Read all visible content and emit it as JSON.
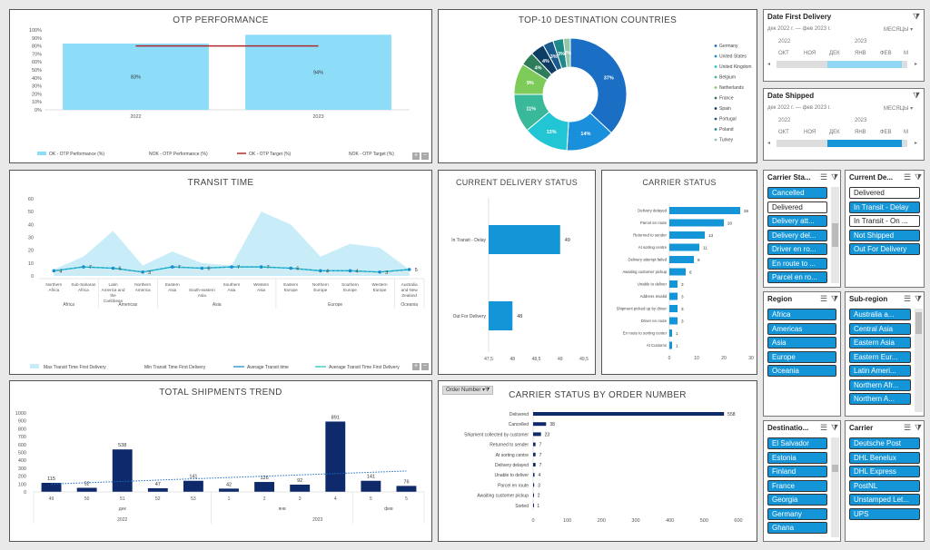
{
  "otp": {
    "title": "OTP PERFORMANCE",
    "yticks": [
      "0%",
      "10%",
      "20%",
      "30%",
      "40%",
      "50%",
      "60%",
      "70%",
      "80%",
      "90%",
      "100%"
    ],
    "categories": [
      "2022",
      "2023"
    ],
    "ok_values": [
      83,
      94
    ],
    "target_value": 80,
    "bar_labels": [
      "83%",
      "94%"
    ],
    "legend": [
      "OK - OTP Performance (%)",
      "NOK - OTP Performance (%)",
      "OK - OTP Target (%)",
      "NOK - OTP Target (%)"
    ]
  },
  "top10": {
    "title": "TOP-10 DESTINATION COUNTRIES",
    "countries": [
      "Germany",
      "United States",
      "United Kingdom",
      "Belgium",
      "Netherlands",
      "France",
      "Spain",
      "Portugal",
      "Poland",
      "Turkey"
    ],
    "values": [
      37,
      14,
      13,
      11,
      9,
      4,
      4,
      3,
      3,
      2
    ],
    "labels": [
      "37%",
      "14%",
      "13%",
      "11%",
      "9%",
      "4%",
      "4%",
      "3%",
      "3%",
      "2%"
    ],
    "colors": [
      "#1a6fc4",
      "#1a8fdc",
      "#22c5d4",
      "#3ab89a",
      "#7ecb5a",
      "#2e7d5a",
      "#0e3d63",
      "#1b5a8c",
      "#1f8a8a",
      "#94c7a8"
    ]
  },
  "transit": {
    "title": "TRANSIT TIME",
    "yticks": [
      "0",
      "10",
      "20",
      "30",
      "40",
      "50",
      "60"
    ],
    "subregions": [
      "Northern Africa",
      "Sub-Saharan Africa",
      "Latin America and the Caribbean",
      "Northern America",
      "Eastern Asia",
      "South-eastern Asia",
      "Southern Asia",
      "Western Asia",
      "Eastern Europe",
      "Northern Europe",
      "Southern Europe",
      "Western Europe",
      "Australia and New Zealand"
    ],
    "regions": [
      "Africa",
      "Americas",
      "Asia",
      "Europe",
      "Oceania"
    ],
    "max_values": [
      5,
      15,
      35,
      8,
      19,
      10,
      8,
      50,
      40,
      15,
      25,
      22,
      5
    ],
    "min_values": [
      3,
      3,
      3,
      2,
      3,
      3,
      3,
      3,
      3,
      2,
      2,
      2,
      3
    ],
    "avg_values": [
      4,
      7,
      6,
      3,
      7,
      6,
      7,
      7,
      6,
      4,
      4,
      3,
      5
    ],
    "avg_first_values": [
      4,
      7,
      6,
      3,
      7,
      6,
      7,
      7,
      6,
      4,
      4,
      3,
      5
    ],
    "avg_labels": [
      "4",
      "7",
      "6",
      "3",
      "7",
      "6",
      "7",
      "7",
      "6",
      "4",
      "4",
      "3",
      "5"
    ],
    "legend": [
      "Max Transit Time First Delivery",
      "Min Transit Time First Delivery",
      "Average Transit time",
      "Average Transit Time First Delivery"
    ]
  },
  "current_status": {
    "title": "CURRENT DELIVERY STATUS",
    "categories": [
      "In Transit - Delay",
      "Out For Delivery"
    ],
    "values": [
      49,
      48
    ],
    "xticks": [
      "47,5",
      "48",
      "48,5",
      "49",
      "49,5"
    ],
    "xmin": 47.5,
    "xmax": 49.5
  },
  "carrier_status": {
    "title": "CARRIER STATUS",
    "categories": [
      "Delivery delayed",
      "Parcel en route",
      "Returned to sender",
      "At sorting centre",
      "Delivery attempt failed",
      "Awaiting customer pickup",
      "Unable to deliver",
      "Address Invalid",
      "Shipment picked up by driver",
      "Driver en route",
      "En route to sorting center",
      "At Customs"
    ],
    "values": [
      26,
      20,
      13,
      11,
      9,
      6,
      3,
      3,
      3,
      3,
      1,
      1
    ],
    "xticks": [
      "0",
      "10",
      "20",
      "30"
    ],
    "xmax": 30
  },
  "trend": {
    "title": "TOTAL SHIPMENTS TREND",
    "yticks": [
      "0",
      "100",
      "200",
      "300",
      "400",
      "500",
      "600",
      "700",
      "800",
      "900",
      "1000"
    ],
    "weeks": [
      "49",
      "50",
      "51",
      "52",
      "53",
      "1",
      "2",
      "3",
      "4",
      "5",
      "5"
    ],
    "months": [
      "дек",
      "янв",
      "фев"
    ],
    "years": [
      "2022",
      "2023"
    ],
    "values": [
      115,
      52,
      538,
      47,
      141,
      42,
      126,
      92,
      891,
      141,
      76
    ],
    "labels": [
      "115",
      "52",
      "538",
      "47",
      "141",
      "42",
      "126",
      "92",
      "891",
      "141",
      "76"
    ]
  },
  "carrier_order": {
    "title": "CARRIER STATUS BY ORDER NUMBER",
    "filter_label": "Order Number",
    "categories": [
      "Delivered",
      "Cancelled",
      "Shipment collected by customer",
      "Returned to sender",
      "At sorting centre",
      "Delivery delayed",
      "Unable to deliver",
      "Parcel en route",
      "Awaiting customer pickup",
      "Sorted"
    ],
    "values": [
      558,
      38,
      23,
      7,
      7,
      7,
      4,
      3,
      2,
      1
    ],
    "xticks": [
      "0",
      "100",
      "200",
      "300",
      "400",
      "500",
      "600"
    ],
    "xmax": 600
  },
  "date_first": {
    "title": "Date First Delivery",
    "range": "дек 2022 г. — фев 2023 г.",
    "unit": "МЕСЯЦЫ",
    "years": [
      "2022",
      "2023"
    ],
    "months": [
      "ОКТ",
      "НОЯ",
      "ДЕК",
      "ЯНВ",
      "ФЕВ",
      "М"
    ]
  },
  "date_shipped": {
    "title": "Date Shipped",
    "range": "дек 2022 г. — фев 2023 г.",
    "unit": "МЕСЯЦЫ",
    "years": [
      "2022",
      "2023"
    ],
    "months": [
      "ОКТ",
      "НОЯ",
      "ДЕК",
      "ЯНВ",
      "ФЕВ",
      "М"
    ]
  },
  "slicers": {
    "carrier_status": {
      "title": "Carrier Sta...",
      "items": [
        {
          "label": "Cancelled",
          "on": true
        },
        {
          "label": "Delivered",
          "on": false
        },
        {
          "label": "Delivery att...",
          "on": true
        },
        {
          "label": "Delivery del...",
          "on": true
        },
        {
          "label": "Driver en ro...",
          "on": true
        },
        {
          "label": "En route to ...",
          "on": true
        },
        {
          "label": "Parcel en ro...",
          "on": true
        }
      ]
    },
    "current_delivery": {
      "title": "Current De...",
      "items": [
        {
          "label": "Delivered",
          "on": false
        },
        {
          "label": "In Transit - Delay",
          "on": true
        },
        {
          "label": "In Transit - On ...",
          "on": false
        },
        {
          "label": "Not Shipped",
          "on": true
        },
        {
          "label": "Out For Delivery",
          "on": true
        }
      ]
    },
    "region": {
      "title": "Region",
      "items": [
        {
          "label": "Africa",
          "on": true
        },
        {
          "label": "Americas",
          "on": true
        },
        {
          "label": "Asia",
          "on": true
        },
        {
          "label": "Europe",
          "on": true
        },
        {
          "label": "Oceania",
          "on": true
        }
      ]
    },
    "subregion": {
      "title": "Sub-region",
      "items": [
        {
          "label": "Australia a...",
          "on": true
        },
        {
          "label": "Central Asia",
          "on": true
        },
        {
          "label": "Eastern Asia",
          "on": true
        },
        {
          "label": "Eastern Eur...",
          "on": true
        },
        {
          "label": "Latin Ameri...",
          "on": true
        },
        {
          "label": "Northern Afr...",
          "on": true
        },
        {
          "label": "Northern A...",
          "on": true
        }
      ]
    },
    "destination": {
      "title": "Destinatio...",
      "items": [
        {
          "label": "El Salvador",
          "on": true
        },
        {
          "label": "Estonia",
          "on": true
        },
        {
          "label": "Finland",
          "on": true
        },
        {
          "label": "France",
          "on": true
        },
        {
          "label": "Georgia",
          "on": true
        },
        {
          "label": "Germany",
          "on": true
        },
        {
          "label": "Ghana",
          "on": true
        }
      ]
    },
    "carrier": {
      "title": "Carrier",
      "items": [
        {
          "label": "Deutsche Post",
          "on": true
        },
        {
          "label": "DHL Benelux",
          "on": true
        },
        {
          "label": "DHL Express",
          "on": true
        },
        {
          "label": "PostNL",
          "on": true
        },
        {
          "label": "Unstamped Let...",
          "on": true
        },
        {
          "label": "UPS",
          "on": true
        }
      ]
    }
  },
  "chart_data": [
    {
      "type": "bar",
      "title": "OTP PERFORMANCE",
      "categories": [
        "2022",
        "2023"
      ],
      "series": [
        {
          "name": "OK - OTP Performance (%)",
          "values": [
            83,
            94
          ]
        },
        {
          "name": "OK - OTP Target (%)",
          "values": [
            80,
            80
          ]
        }
      ],
      "ylim": [
        0,
        100
      ]
    },
    {
      "type": "pie",
      "title": "TOP-10 DESTINATION COUNTRIES",
      "categories": [
        "Germany",
        "United States",
        "United Kingdom",
        "Belgium",
        "Netherlands",
        "France",
        "Spain",
        "Portugal",
        "Poland",
        "Turkey"
      ],
      "values": [
        37,
        14,
        13,
        11,
        9,
        4,
        4,
        3,
        3,
        2
      ]
    },
    {
      "type": "area",
      "title": "TRANSIT TIME",
      "categories": [
        "Northern Africa",
        "Sub-Saharan Africa",
        "Latin America and the Caribbean",
        "Northern America",
        "Eastern Asia",
        "South-eastern Asia",
        "Southern Asia",
        "Western Asia",
        "Eastern Europe",
        "Northern Europe",
        "Southern Europe",
        "Western Europe",
        "Australia and New Zealand"
      ],
      "series": [
        {
          "name": "Max Transit Time First Delivery",
          "values": [
            5,
            15,
            35,
            8,
            19,
            10,
            8,
            50,
            40,
            15,
            25,
            22,
            5
          ]
        },
        {
          "name": "Average Transit time",
          "values": [
            4,
            7,
            6,
            3,
            7,
            6,
            7,
            7,
            6,
            4,
            4,
            3,
            5
          ]
        }
      ],
      "ylim": [
        0,
        60
      ]
    },
    {
      "type": "bar",
      "title": "CURRENT DELIVERY STATUS",
      "categories": [
        "In Transit - Delay",
        "Out For Delivery"
      ],
      "values": [
        49,
        48
      ],
      "xlim": [
        47.5,
        49.5
      ]
    },
    {
      "type": "bar",
      "title": "CARRIER STATUS",
      "categories": [
        "Delivery delayed",
        "Parcel en route",
        "Returned to sender",
        "At sorting centre",
        "Delivery attempt failed",
        "Awaiting customer pickup",
        "Unable to deliver",
        "Address Invalid",
        "Shipment picked up by driver",
        "Driver en route",
        "En route to sorting center",
        "At Customs"
      ],
      "values": [
        26,
        20,
        13,
        11,
        9,
        6,
        3,
        3,
        3,
        3,
        1,
        1
      ]
    },
    {
      "type": "bar",
      "title": "TOTAL SHIPMENTS TREND",
      "categories": [
        "49",
        "50",
        "51",
        "52",
        "53",
        "1",
        "2",
        "3",
        "4",
        "5",
        "5"
      ],
      "values": [
        115,
        52,
        538,
        47,
        141,
        42,
        126,
        92,
        891,
        141,
        76
      ],
      "ylim": [
        0,
        1000
      ]
    },
    {
      "type": "bar",
      "title": "CARRIER STATUS BY ORDER NUMBER",
      "categories": [
        "Delivered",
        "Cancelled",
        "Shipment collected by customer",
        "Returned to sender",
        "At sorting centre",
        "Delivery delayed",
        "Unable to deliver",
        "Parcel en route",
        "Awaiting customer pickup",
        "Sorted"
      ],
      "values": [
        558,
        38,
        23,
        7,
        7,
        7,
        4,
        3,
        2,
        1
      ],
      "xlim": [
        0,
        600
      ]
    }
  ]
}
